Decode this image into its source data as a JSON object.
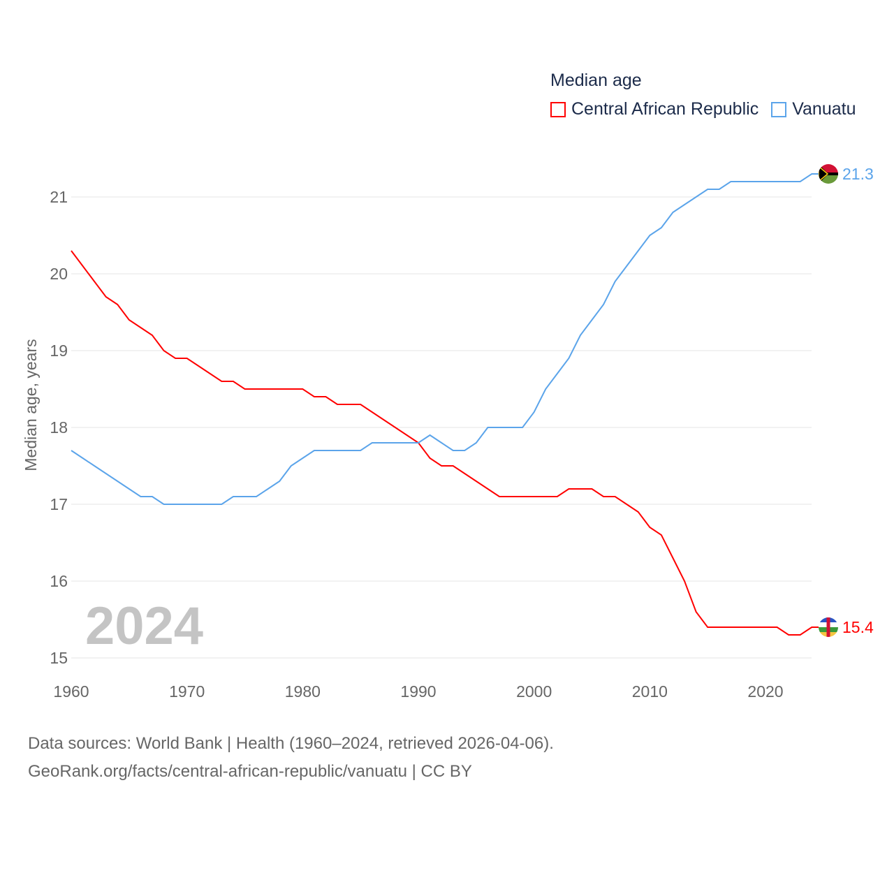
{
  "chart_data": {
    "type": "line",
    "title": "Median age",
    "ylabel": "Median age, years",
    "xlabel": "",
    "xlim": [
      1960,
      2024
    ],
    "ylim": [
      15,
      21.3
    ],
    "yticks": [
      15,
      16,
      17,
      18,
      19,
      20,
      21
    ],
    "xticks": [
      1960,
      1970,
      1980,
      1990,
      2000,
      2010,
      2020
    ],
    "grid": true,
    "legend_placement": "top-right",
    "year_label": "2024",
    "x_start": 1960,
    "series": [
      {
        "name": "Central African Republic",
        "color": "#ff0000",
        "end_label": "15.4",
        "values": [
          20.3,
          20.1,
          19.9,
          19.7,
          19.6,
          19.4,
          19.3,
          19.2,
          19.0,
          18.9,
          18.9,
          18.8,
          18.7,
          18.6,
          18.6,
          18.5,
          18.5,
          18.5,
          18.5,
          18.5,
          18.5,
          18.4,
          18.4,
          18.3,
          18.3,
          18.3,
          18.2,
          18.1,
          18.0,
          17.9,
          17.8,
          17.6,
          17.5,
          17.5,
          17.4,
          17.3,
          17.2,
          17.1,
          17.1,
          17.1,
          17.1,
          17.1,
          17.1,
          17.2,
          17.2,
          17.2,
          17.1,
          17.1,
          17.0,
          16.9,
          16.7,
          16.6,
          16.3,
          16.0,
          15.6,
          15.4,
          15.4,
          15.4,
          15.4,
          15.4,
          15.4,
          15.4,
          15.3,
          15.3,
          15.4
        ]
      },
      {
        "name": "Vanuatu",
        "color": "#5ba4ea",
        "end_label": "21.3",
        "values": [
          17.7,
          17.6,
          17.5,
          17.4,
          17.3,
          17.2,
          17.1,
          17.1,
          17.0,
          17.0,
          17.0,
          17.0,
          17.0,
          17.0,
          17.1,
          17.1,
          17.1,
          17.2,
          17.3,
          17.5,
          17.6,
          17.7,
          17.7,
          17.7,
          17.7,
          17.7,
          17.8,
          17.8,
          17.8,
          17.8,
          17.8,
          17.9,
          17.8,
          17.7,
          17.7,
          17.8,
          18.0,
          18.0,
          18.0,
          18.0,
          18.2,
          18.5,
          18.7,
          18.9,
          19.2,
          19.4,
          19.6,
          19.9,
          20.1,
          20.3,
          20.5,
          20.6,
          20.8,
          20.9,
          21.0,
          21.1,
          21.1,
          21.2,
          21.2,
          21.2,
          21.2,
          21.2,
          21.2,
          21.2,
          21.3
        ]
      }
    ]
  },
  "source": {
    "line1": "Data sources: World Bank | Health (1960–2024, retrieved 2026-04-06).",
    "line2": "GeoRank.org/facts/central-african-republic/vanuatu | CC BY"
  }
}
